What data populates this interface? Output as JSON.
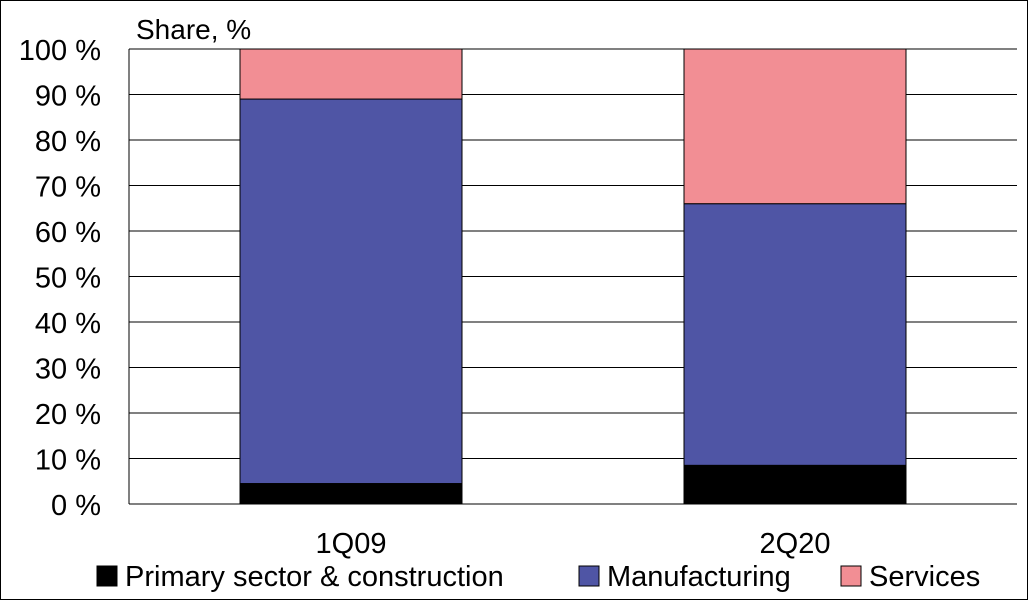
{
  "chart_data": {
    "type": "bar",
    "stacked": true,
    "ylabel": "Share, %",
    "xlabel": "",
    "title": "",
    "ylim": [
      0,
      100
    ],
    "y_ticks": [
      "0 %",
      "10 %",
      "20 %",
      "30 %",
      "40 %",
      "50 %",
      "60 %",
      "70 %",
      "80 %",
      "90 %",
      "100 %"
    ],
    "categories": [
      "1Q09",
      "2Q20"
    ],
    "series": [
      {
        "name": "Primary sector & construction",
        "color": "#000000",
        "values": [
          4.5,
          8.5
        ]
      },
      {
        "name": "Manufacturing",
        "color": "#4f55a5",
        "values": [
          84.5,
          57.5
        ]
      },
      {
        "name": "Services",
        "color": "#f28e94",
        "values": [
          11.0,
          34.0
        ]
      }
    ],
    "grid": true,
    "legend_position": "bottom"
  }
}
